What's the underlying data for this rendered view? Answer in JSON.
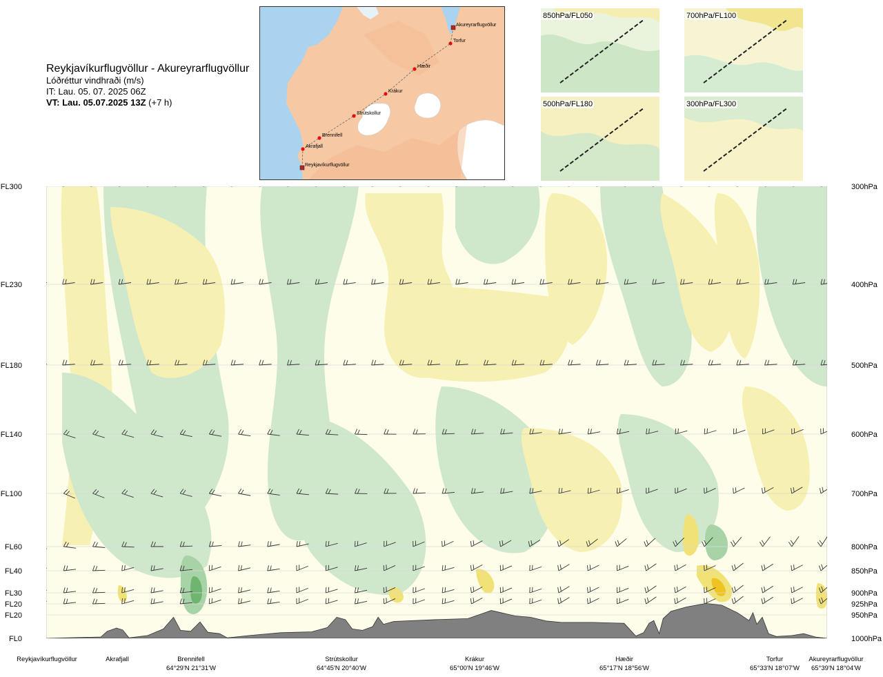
{
  "header": {
    "route": "Reykjavíkurflugvöllur - Akureyrarflugvöllur",
    "parameter": "Lóðréttur vindhraði (m/s)",
    "init_time": "IT: Lau. 05. 07. 2025 06Z",
    "valid_time": "VT: Lau. 05.07.2025 13Z",
    "lead": "(+7 h)"
  },
  "route_map": {
    "waypoints": [
      {
        "name": "Akureyrarflugvöllur"
      },
      {
        "name": "Torfur"
      },
      {
        "name": "Hæðir"
      },
      {
        "name": "Krákur"
      },
      {
        "name": "Strútskollur"
      },
      {
        "name": "Brennifell"
      },
      {
        "name": "Akrafjall"
      },
      {
        "name": "Reykjavíkurflugvöllur"
      }
    ],
    "land_color": "#f6c9a4",
    "sea_color": "#a9d3ef",
    "ice_color": "#ffffff"
  },
  "level_maps": [
    {
      "label": "850hPa/FL050"
    },
    {
      "label": "700hPa/FL100"
    },
    {
      "label": "500hPa/FL180"
    },
    {
      "label": "300hPa/FL300"
    }
  ],
  "chart_data": {
    "type": "heatmap",
    "title": "Lóðréttur vindhraði (m/s)",
    "flight_levels": [
      {
        "label": "FL300",
        "hpa": "300hPa",
        "p": 300
      },
      {
        "label": "FL230",
        "hpa": "400hPa",
        "p": 400
      },
      {
        "label": "FL180",
        "hpa": "500hPa",
        "p": 500
      },
      {
        "label": "FL140",
        "hpa": "600hPa",
        "p": 600
      },
      {
        "label": "FL100",
        "hpa": "700hPa",
        "p": 700
      },
      {
        "label": "FL60",
        "hpa": "800hPa",
        "p": 800
      },
      {
        "label": "FL40",
        "hpa": "850hPa",
        "p": 850
      },
      {
        "label": "FL30",
        "hpa": "900hPa",
        "p": 900
      },
      {
        "label": "FL20",
        "hpa": "925hPa",
        "p": 925
      },
      {
        "label": "FL20",
        "hpa": "950hPa",
        "p": 950
      },
      {
        "label": "FL0",
        "hpa": "1000hPa",
        "p": 1000
      }
    ],
    "ylim": [
      1000,
      300
    ],
    "waypoints": [
      {
        "name": "Reykjavíkurflugvöllur",
        "coord": "",
        "dist": 0.0
      },
      {
        "name": "Akrafjall",
        "coord": "",
        "dist": 0.09
      },
      {
        "name": "Brennifell",
        "coord": "64°29'N 21°31'W",
        "dist": 0.197
      },
      {
        "name": "Strútskollur",
        "coord": "64°45'N 20°40'W",
        "dist": 0.383
      },
      {
        "name": "Krákur",
        "coord": "65°00'N 19°46'W",
        "dist": 0.57
      },
      {
        "name": "Hæðir",
        "coord": "65°17'N 18°56'W",
        "dist": 0.743
      },
      {
        "name": "Torfur",
        "coord": "65°33'N 18°07'W",
        "dist": 0.925
      },
      {
        "name": "Akureyrarflugvöllur",
        "coord": "65°39'N 18°04'W",
        "dist": 1.0
      }
    ],
    "terrain_pressure_hpa": [
      [
        0.0,
        1000
      ],
      [
        0.07,
        997
      ],
      [
        0.078,
        985
      ],
      [
        0.09,
        978
      ],
      [
        0.098,
        982
      ],
      [
        0.106,
        999
      ],
      [
        0.13,
        994
      ],
      [
        0.15,
        980
      ],
      [
        0.163,
        955
      ],
      [
        0.172,
        983
      ],
      [
        0.185,
        985
      ],
      [
        0.197,
        965
      ],
      [
        0.207,
        987
      ],
      [
        0.222,
        990
      ],
      [
        0.232,
        999
      ],
      [
        0.26,
        994
      ],
      [
        0.3,
        988
      ],
      [
        0.34,
        986
      ],
      [
        0.36,
        977
      ],
      [
        0.372,
        955
      ],
      [
        0.383,
        960
      ],
      [
        0.392,
        980
      ],
      [
        0.405,
        983
      ],
      [
        0.418,
        975
      ],
      [
        0.425,
        955
      ],
      [
        0.432,
        970
      ],
      [
        0.445,
        964
      ],
      [
        0.5,
        960
      ],
      [
        0.54,
        958
      ],
      [
        0.57,
        940
      ],
      [
        0.58,
        944
      ],
      [
        0.6,
        952
      ],
      [
        0.62,
        955
      ],
      [
        0.64,
        963
      ],
      [
        0.66,
        966
      ],
      [
        0.7,
        966
      ],
      [
        0.74,
        968
      ],
      [
        0.755,
        995
      ],
      [
        0.765,
        988
      ],
      [
        0.772,
        968
      ],
      [
        0.778,
        962
      ],
      [
        0.785,
        990
      ],
      [
        0.79,
        958
      ],
      [
        0.8,
        942
      ],
      [
        0.82,
        932
      ],
      [
        0.845,
        924
      ],
      [
        0.865,
        928
      ],
      [
        0.885,
        945
      ],
      [
        0.9,
        962
      ],
      [
        0.905,
        945
      ],
      [
        0.91,
        970
      ],
      [
        0.917,
        955
      ],
      [
        0.925,
        990
      ],
      [
        0.935,
        996
      ],
      [
        0.955,
        994
      ],
      [
        0.97,
        990
      ],
      [
        0.985,
        997
      ],
      [
        1.0,
        1000
      ]
    ],
    "color_scale": [
      {
        "w": "-2.0",
        "color": "#6fb46f"
      },
      {
        "w": "-1.0",
        "color": "#a7d3a6"
      },
      {
        "w": "-0.5",
        "color": "#cfe8cc"
      },
      {
        "w": "-0.1",
        "color": "#eaf6e6"
      },
      {
        "w": "0.1",
        "color": "#fefde9"
      },
      {
        "w": "0.5",
        "color": "#f7f0b3"
      },
      {
        "w": "1.0",
        "color": "#f1e277"
      },
      {
        "w": "2.0",
        "color": "#eec322"
      }
    ],
    "terrain_color": "#808080",
    "grid": true
  }
}
